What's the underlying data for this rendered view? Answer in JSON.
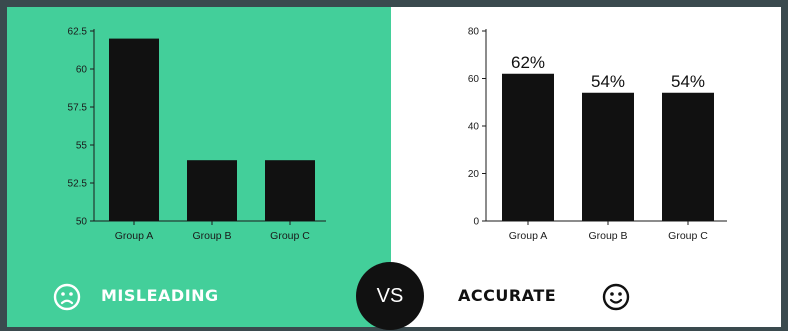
{
  "chart_data": [
    {
      "type": "bar",
      "categories": [
        "Group A",
        "Group B",
        "Group C"
      ],
      "values": [
        62,
        54,
        54
      ],
      "ylim": [
        50,
        62.5
      ],
      "yticks": [
        "62.5",
        "60",
        "57.5",
        "55",
        "52.5",
        "50"
      ],
      "ytick_values": [
        62.5,
        60,
        57.5,
        55,
        52.5,
        50
      ],
      "bar_color": "#111111",
      "background": "#43cf9a",
      "grid": false
    },
    {
      "type": "bar",
      "categories": [
        "Group A",
        "Group B",
        "Group C"
      ],
      "values": [
        62,
        54,
        54
      ],
      "data_labels": [
        "62%",
        "54%",
        "54%"
      ],
      "ylim": [
        0,
        80
      ],
      "yticks": [
        "80",
        "60",
        "40",
        "20",
        "0"
      ],
      "ytick_values": [
        80,
        60,
        40,
        20,
        0
      ],
      "bar_color": "#111111",
      "background": "#ffffff",
      "grid": false
    }
  ],
  "footer": {
    "left_label": "MISLEADING",
    "vs_label": "VS",
    "right_label": "ACCURATE",
    "left_icon": "sad-face-icon",
    "right_icon": "smiley-face-icon"
  },
  "colors": {
    "accent": "#43cf9a",
    "frame": "#3a4a4e",
    "bars": "#111111"
  }
}
